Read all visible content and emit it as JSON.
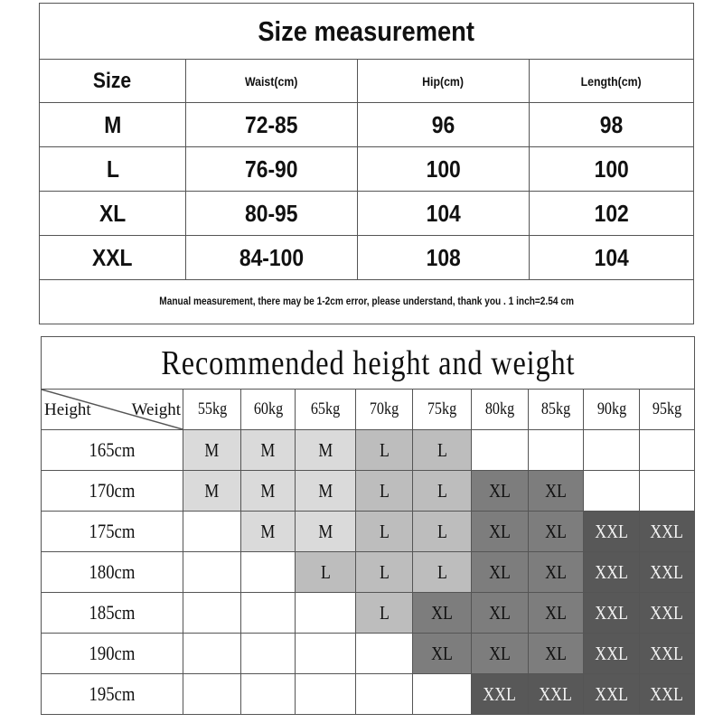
{
  "size_table": {
    "title": "Size measurement",
    "headers": [
      "Size",
      "Waist(cm)",
      "Hip(cm)",
      "Length(cm)"
    ],
    "rows": [
      [
        "M",
        "72-85",
        "96",
        "98"
      ],
      [
        "L",
        "76-90",
        "100",
        "100"
      ],
      [
        "XL",
        "80-95",
        "104",
        "102"
      ],
      [
        "XXL",
        "84-100",
        "108",
        "104"
      ]
    ],
    "note": "Manual measurement, there may be 1-2cm error, please understand, thank you .   1 inch=2.54 cm"
  },
  "recommend_table": {
    "title": "Recommended height and weight",
    "corner_row_label": "Height",
    "corner_col_label": "Weight",
    "weights": [
      "55kg",
      "60kg",
      "65kg",
      "70kg",
      "75kg",
      "80kg",
      "85kg",
      "90kg",
      "95kg"
    ],
    "rows": [
      {
        "height": "165cm",
        "sizes": [
          "M",
          "M",
          "M",
          "L",
          "L",
          "",
          "",
          "",
          ""
        ]
      },
      {
        "height": "170cm",
        "sizes": [
          "M",
          "M",
          "M",
          "L",
          "L",
          "XL",
          "XL",
          "",
          ""
        ]
      },
      {
        "height": "175cm",
        "sizes": [
          "",
          "M",
          "M",
          "L",
          "L",
          "XL",
          "XL",
          "XXL",
          "XXL"
        ]
      },
      {
        "height": "180cm",
        "sizes": [
          "",
          "",
          "L",
          "L",
          "L",
          "XL",
          "XL",
          "XXL",
          "XXL"
        ]
      },
      {
        "height": "185cm",
        "sizes": [
          "",
          "",
          "",
          "L",
          "XL",
          "XL",
          "XL",
          "XXL",
          "XXL"
        ]
      },
      {
        "height": "190cm",
        "sizes": [
          "",
          "",
          "",
          "",
          "XL",
          "XL",
          "XL",
          "XXL",
          "XXL"
        ]
      },
      {
        "height": "195cm",
        "sizes": [
          "",
          "",
          "",
          "",
          "",
          "XXL",
          "XXL",
          "XXL",
          "XXL"
        ]
      }
    ],
    "size_colors": {
      "M": "#dadada",
      "L": "#bdbdbd",
      "XL": "#7d7d7d",
      "XXL": "#585858"
    }
  }
}
